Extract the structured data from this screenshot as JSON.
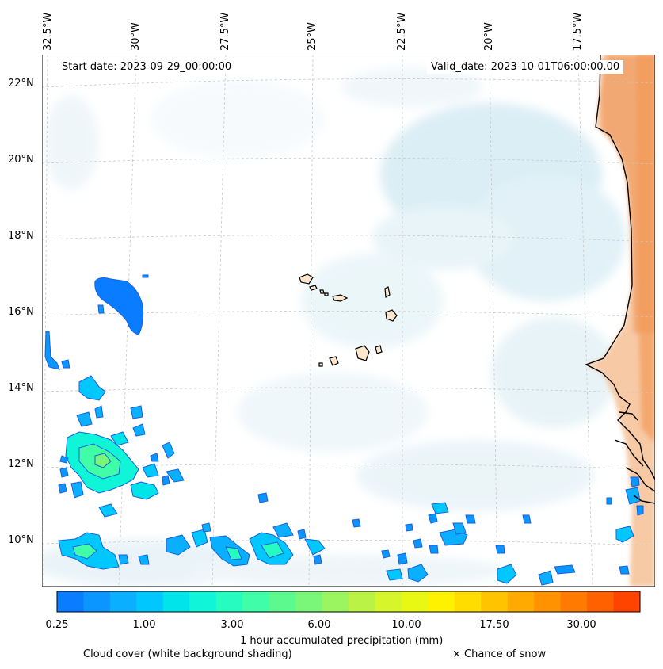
{
  "map": {
    "start_label": "Start date: 2023-09-29_00:00:00",
    "valid_label": "Valid_date: 2023-10-01T06:00:00.00",
    "lon_labels": [
      "32.5°W",
      "30°W",
      "27.5°W",
      "25°W",
      "22.5°W",
      "20°W",
      "17.5°W"
    ],
    "lat_labels": [
      "22°N",
      "20°N",
      "18°N",
      "16°N",
      "14°N",
      "12°N",
      "10°N"
    ]
  },
  "colorbar": {
    "colors": [
      "#0a7cff",
      "#0a95ff",
      "#0aafff",
      "#00c8ff",
      "#00e4ea",
      "#10f5d8",
      "#26fbc0",
      "#40fda8",
      "#5cf98e",
      "#7af678",
      "#9af560",
      "#baf245",
      "#d6f52a",
      "#e8f812",
      "#fff200",
      "#ffdd00",
      "#ffc400",
      "#ffaa00",
      "#ff9200",
      "#ff7a00",
      "#ff6000",
      "#ff4400"
    ],
    "ticks": [
      "0.25",
      "1.00",
      "3.00",
      "6.00",
      "10.00",
      "17.50",
      "30.00"
    ],
    "label": "1 hour accumulated precipitation (mm)"
  },
  "legend": {
    "cloud_label": "Cloud cover (white background shading)",
    "snow_label": "× Chance of snow"
  }
}
